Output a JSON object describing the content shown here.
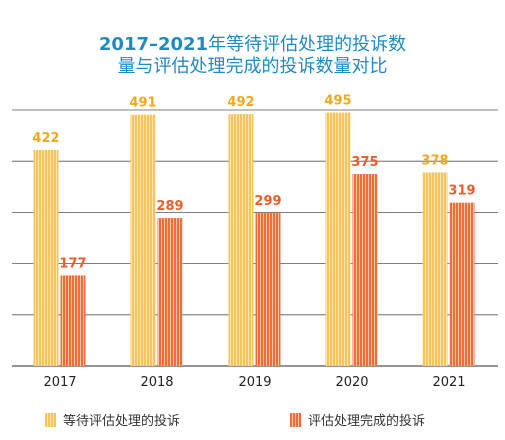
{
  "title_line1_bold": "2017–2021",
  "title_line1_rest": "年等待评估处理的投诉数",
  "title_line2": "量与评估处理完成的投诉数量对比",
  "colors": {
    "pending": "#f6c45c",
    "pending_label": "#f0a81f",
    "completed": "#e9703a",
    "completed_label": "#e95e2c",
    "title": "#1e8bc3",
    "grid": "#555555"
  },
  "chart_data": {
    "type": "bar",
    "categories": [
      "2017",
      "2018",
      "2019",
      "2020",
      "2021"
    ],
    "series": [
      {
        "name": "等待评估处理的投诉",
        "values": [
          422,
          491,
          492,
          495,
          378
        ]
      },
      {
        "name": "评估处理完成的投诉",
        "values": [
          177,
          289,
          299,
          375,
          319
        ]
      }
    ],
    "ylim": [
      0,
      500
    ],
    "grid": true,
    "legend_position": "bottom"
  }
}
